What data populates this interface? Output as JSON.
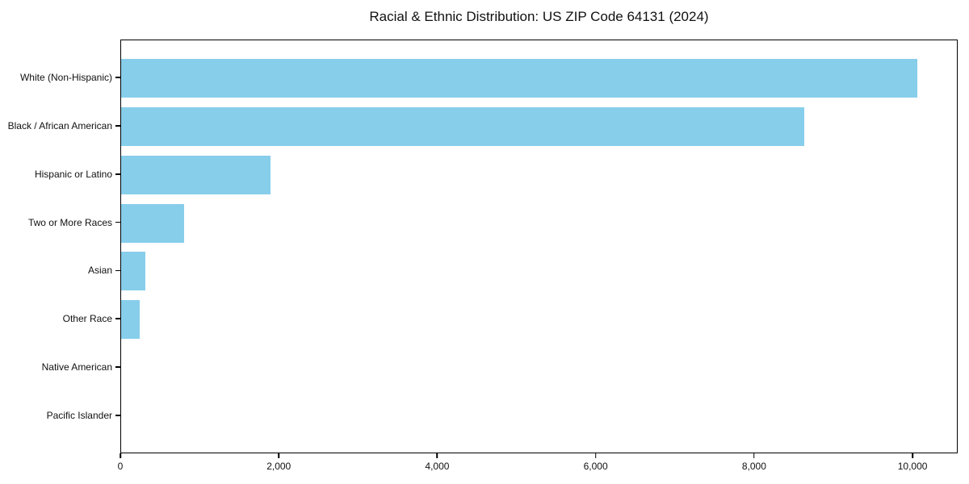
{
  "chart_data": {
    "type": "bar",
    "orientation": "horizontal",
    "title": "Racial & Ethnic Distribution: US ZIP Code 64131 (2024)",
    "categories": [
      "White (Non-Hispanic)",
      "Black / African American",
      "Hispanic or Latino",
      "Two or More Races",
      "Asian",
      "Other Race",
      "Native American",
      "Pacific Islander"
    ],
    "values": [
      10070,
      8640,
      1890,
      795,
      305,
      235,
      0,
      0
    ],
    "xlabel": "",
    "ylabel": "",
    "xlim": [
      0,
      10570
    ],
    "x_ticks": [
      0,
      2000,
      4000,
      6000,
      8000,
      10000
    ],
    "x_tick_labels": [
      "0",
      "2,000",
      "4,000",
      "6,000",
      "8,000",
      "10,000"
    ],
    "bar_color": "#87CEEB",
    "grid": false,
    "legend": false,
    "frame": true
  }
}
